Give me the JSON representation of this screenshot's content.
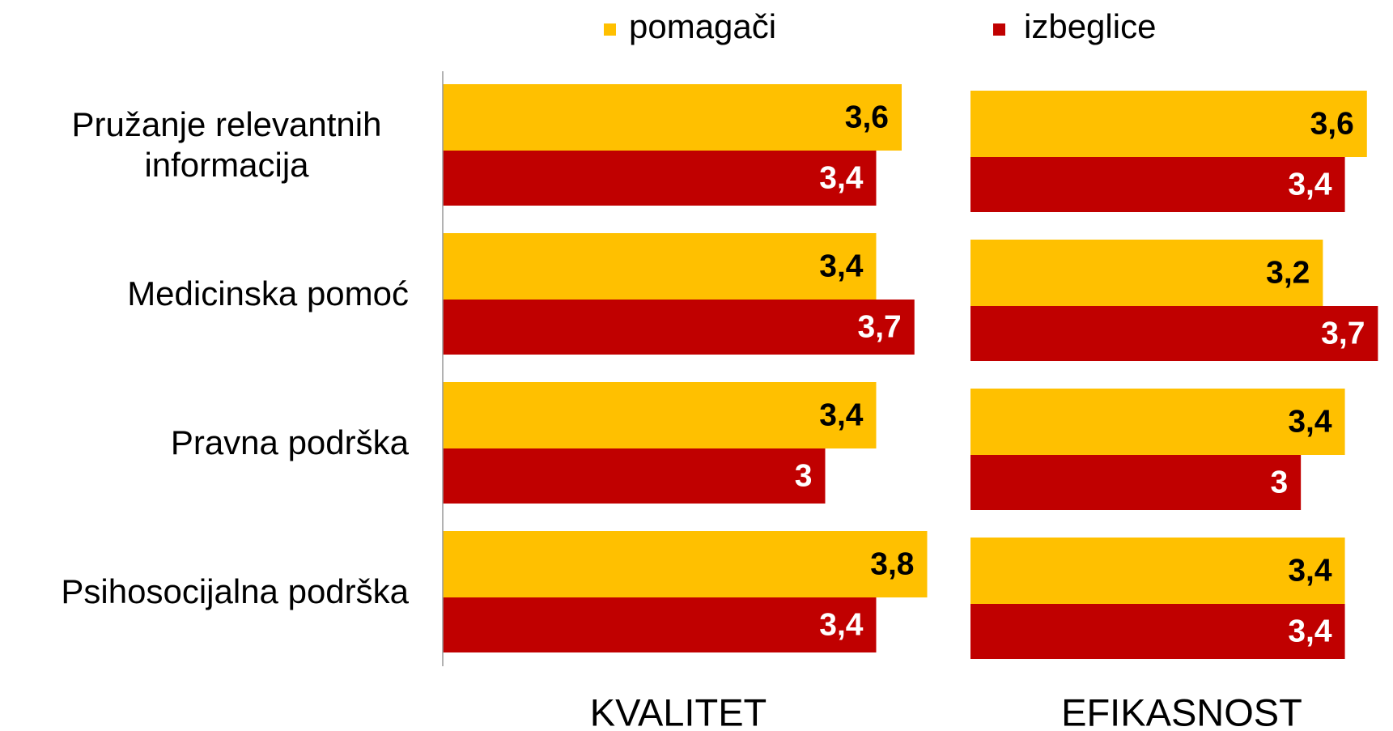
{
  "chart_data": [
    {
      "type": "barh",
      "title": "KVALITET",
      "categories": [
        "Pružanje relevantnih informacija",
        "Medicinska pomoć",
        "Pravna podrška",
        "Psihosocijalna podrška"
      ],
      "series": [
        {
          "name": "pomagači",
          "color": "#FFC000",
          "values": [
            3.6,
            3.4,
            3.4,
            3.8
          ],
          "value_labels": [
            "3,6",
            "3,4",
            "3,4",
            "3,8"
          ]
        },
        {
          "name": "izbeglice",
          "color": "#C00000",
          "values": [
            3.4,
            3.7,
            3,
            3.4
          ],
          "value_labels": [
            "3,4",
            "3,7",
            "3",
            "3,4"
          ]
        }
      ],
      "xlim": [
        0,
        4
      ],
      "axis_line": true
    },
    {
      "type": "barh",
      "title": "EFIKASNOST",
      "series": [
        {
          "color": "#FFC000",
          "values": [
            3.6,
            3.2,
            3.4,
            3.4
          ],
          "value_labels": [
            "3,6",
            "3,2",
            "3,4",
            "3,4"
          ]
        },
        {
          "color": "#C00000",
          "values": [
            3.4,
            3.7,
            3,
            3.4
          ],
          "value_labels": [
            "3,4",
            "3,7",
            "3",
            "3,4"
          ]
        }
      ],
      "xlim": [
        0,
        3.8
      ],
      "axis_line": false
    }
  ]
}
